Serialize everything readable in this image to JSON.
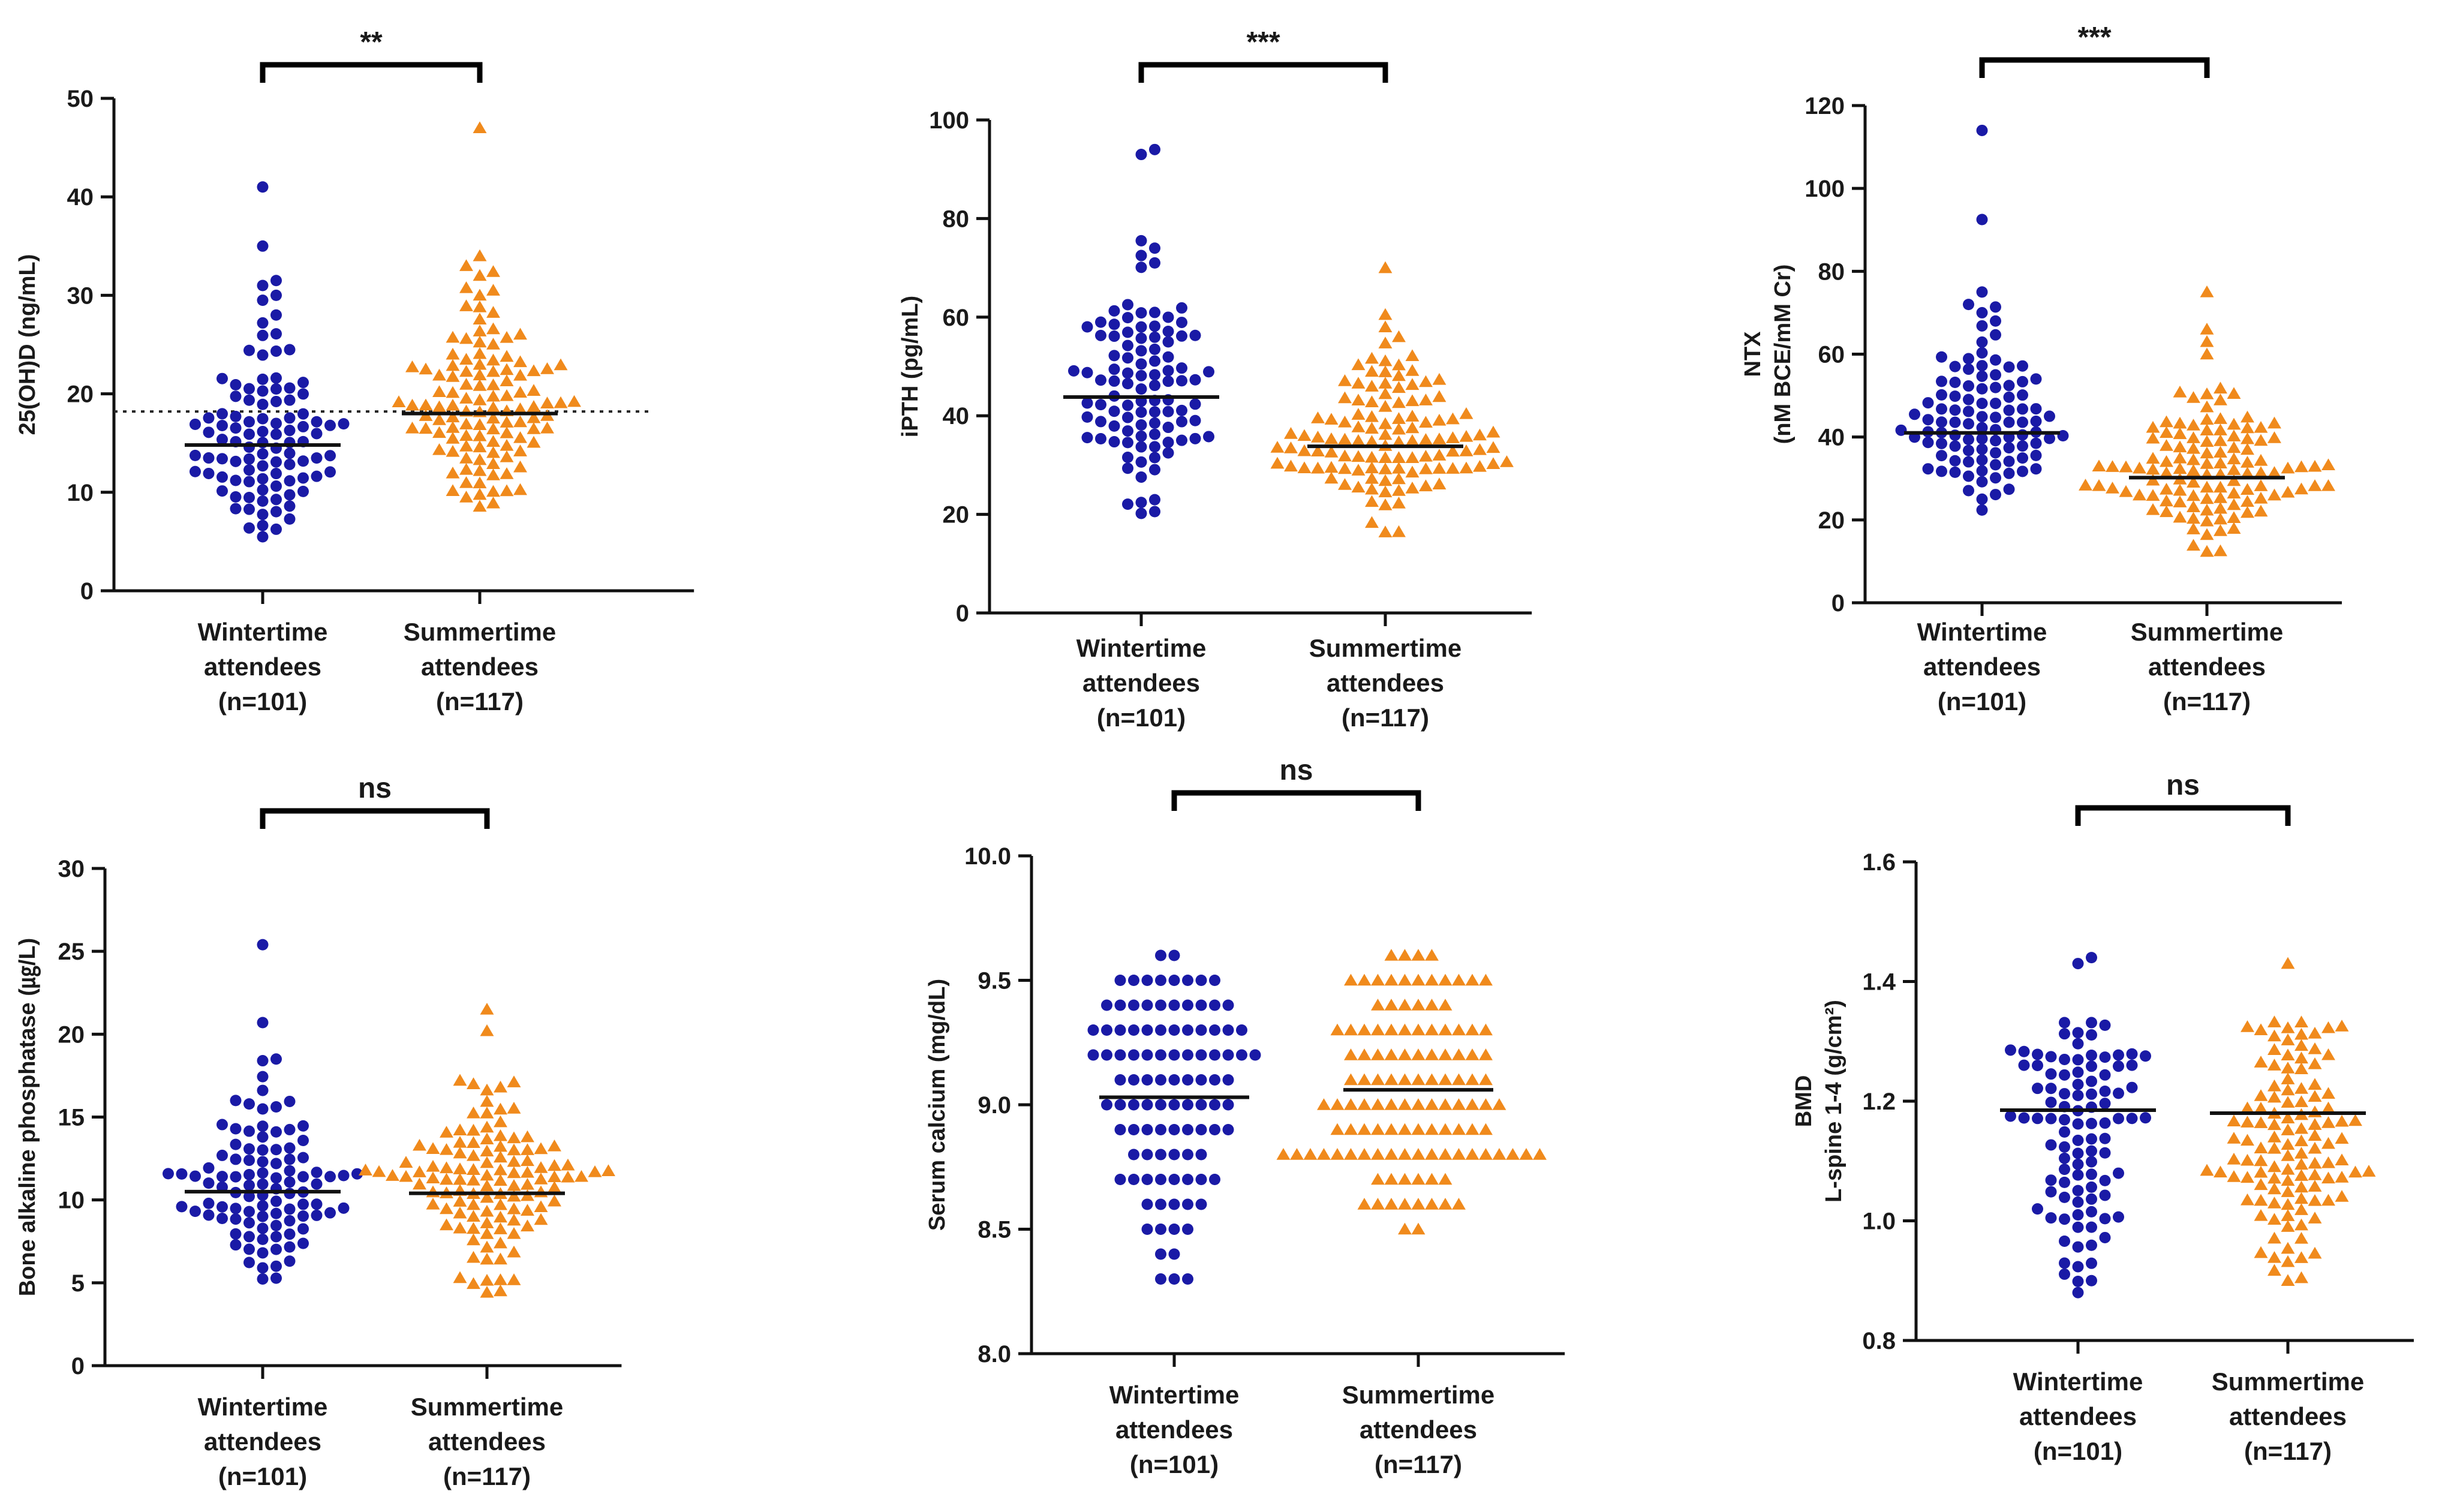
{
  "chart_data": [
    {
      "type": "scatter",
      "ylabel": [
        "25(OH)D (ng/mL)"
      ],
      "ylim": [
        0,
        50
      ],
      "yticks": [
        0,
        10,
        20,
        30,
        40,
        50
      ],
      "significance": "**",
      "reference_line": 18.2,
      "groups": [
        {
          "name": "Wintertime attendees",
          "n_label": "(n=101)",
          "n": 101,
          "color": "#1a1aa6",
          "marker": "circle",
          "mean": 14.8,
          "min": 5,
          "max": 41,
          "extremes": [
            41,
            35,
            31.5,
            31,
            30,
            29.5,
            28
          ]
        },
        {
          "name": "Summertime attendees",
          "n_label": "(n=117)",
          "n": 117,
          "color": "#f08a1c",
          "marker": "triangle",
          "mean": 18.0,
          "min": 8,
          "max": 47,
          "extremes": [
            47,
            34,
            33,
            32,
            30.5,
            30
          ]
        }
      ]
    },
    {
      "type": "scatter",
      "ylabel": [
        "iPTH (pg/mL)"
      ],
      "ylim": [
        0,
        100
      ],
      "yticks": [
        0,
        20,
        40,
        60,
        80,
        100
      ],
      "significance": "***",
      "groups": [
        {
          "name": "Wintertime attendees",
          "n_label": "(n=101)",
          "n": 101,
          "color": "#1a1aa6",
          "marker": "circle",
          "mean": 43.8,
          "min": 20,
          "max": 94,
          "extremes": [
            94,
            93,
            75.5,
            74,
            72.5,
            71
          ]
        },
        {
          "name": "Summertime attendees",
          "n_label": "(n=117)",
          "n": 117,
          "color": "#f08a1c",
          "marker": "triangle",
          "mean": 33.8,
          "min": 16,
          "max": 70,
          "extremes": [
            70,
            60.5,
            58,
            56
          ]
        }
      ]
    },
    {
      "type": "scatter",
      "ylabel": [
        "NTX",
        "(nM BCE/mM Cr)"
      ],
      "ylim": [
        0,
        120
      ],
      "yticks": [
        0,
        20,
        40,
        60,
        80,
        100,
        120
      ],
      "significance": "***",
      "groups": [
        {
          "name": "Wintertime attendees",
          "n_label": "(n=101)",
          "n": 101,
          "color": "#1a1aa6",
          "marker": "circle",
          "mean": 41.0,
          "min": 20,
          "max": 114,
          "extremes": [
            114,
            92.5,
            75,
            72,
            70,
            68
          ]
        },
        {
          "name": "Summertime attendees",
          "n_label": "(n=117)",
          "n": 117,
          "color": "#f08a1c",
          "marker": "triangle",
          "mean": 30.2,
          "min": 12,
          "max": 75,
          "extremes": [
            75,
            66,
            63,
            60
          ]
        }
      ]
    },
    {
      "type": "scatter",
      "ylabel": [
        "Bone alkaline phosphatase (㎍/L)"
      ],
      "ylim": [
        0,
        30
      ],
      "yticks": [
        0,
        5,
        10,
        15,
        20,
        25,
        30
      ],
      "significance": "ns",
      "groups": [
        {
          "name": "Wintertime attendees",
          "n_label": "(n=101)",
          "n": 101,
          "color": "#1a1aa6",
          "marker": "circle",
          "mean": 10.5,
          "min": 5,
          "max": 25.4,
          "extremes": [
            25.4,
            20.7,
            18.5,
            18.4,
            16
          ]
        },
        {
          "name": "Summertime attendees",
          "n_label": "(n=117)",
          "n": 117,
          "color": "#f08a1c",
          "marker": "triangle",
          "mean": 10.4,
          "min": 4.3,
          "max": 21.5,
          "extremes": [
            21.5,
            20.2,
            17,
            16.8
          ]
        }
      ]
    },
    {
      "type": "scatter",
      "ylabel": [
        "Serum calcium (mg/dL)"
      ],
      "ylim": [
        8.0,
        10.0
      ],
      "yticks": [
        8.0,
        8.5,
        9.0,
        9.5,
        10.0
      ],
      "significance": "ns",
      "quantized": 0.1,
      "groups": [
        {
          "name": "Wintertime attendees",
          "n_label": "(n=101)",
          "n": 101,
          "color": "#1a1aa6",
          "marker": "circle",
          "mean": 9.03,
          "min": 8.3,
          "max": 9.6,
          "extremes": []
        },
        {
          "name": "Summertime attendees",
          "n_label": "(n=117)",
          "n": 117,
          "color": "#f08a1c",
          "marker": "triangle",
          "mean": 9.06,
          "min": 8.5,
          "max": 9.6,
          "extremes": []
        }
      ]
    },
    {
      "type": "scatter",
      "ylabel": [
        "BMD",
        "L-spine 1-4 (g/cm²)"
      ],
      "ylim": [
        0.8,
        1.6
      ],
      "yticks": [
        0.8,
        1.0,
        1.2,
        1.4,
        1.6
      ],
      "significance": "ns",
      "groups": [
        {
          "name": "Wintertime attendees",
          "n_label": "(n=101)",
          "n": 101,
          "color": "#1a1aa6",
          "marker": "circle",
          "mean": 1.185,
          "min": 0.88,
          "max": 1.44,
          "extremes": [
            1.44,
            1.43,
            0.88,
            0.9
          ]
        },
        {
          "name": "Summertime attendees",
          "n_label": "(n=117)",
          "n": 117,
          "color": "#f08a1c",
          "marker": "triangle",
          "mean": 1.18,
          "min": 0.9,
          "max": 1.43,
          "extremes": [
            1.43,
            0.9
          ]
        }
      ]
    }
  ]
}
